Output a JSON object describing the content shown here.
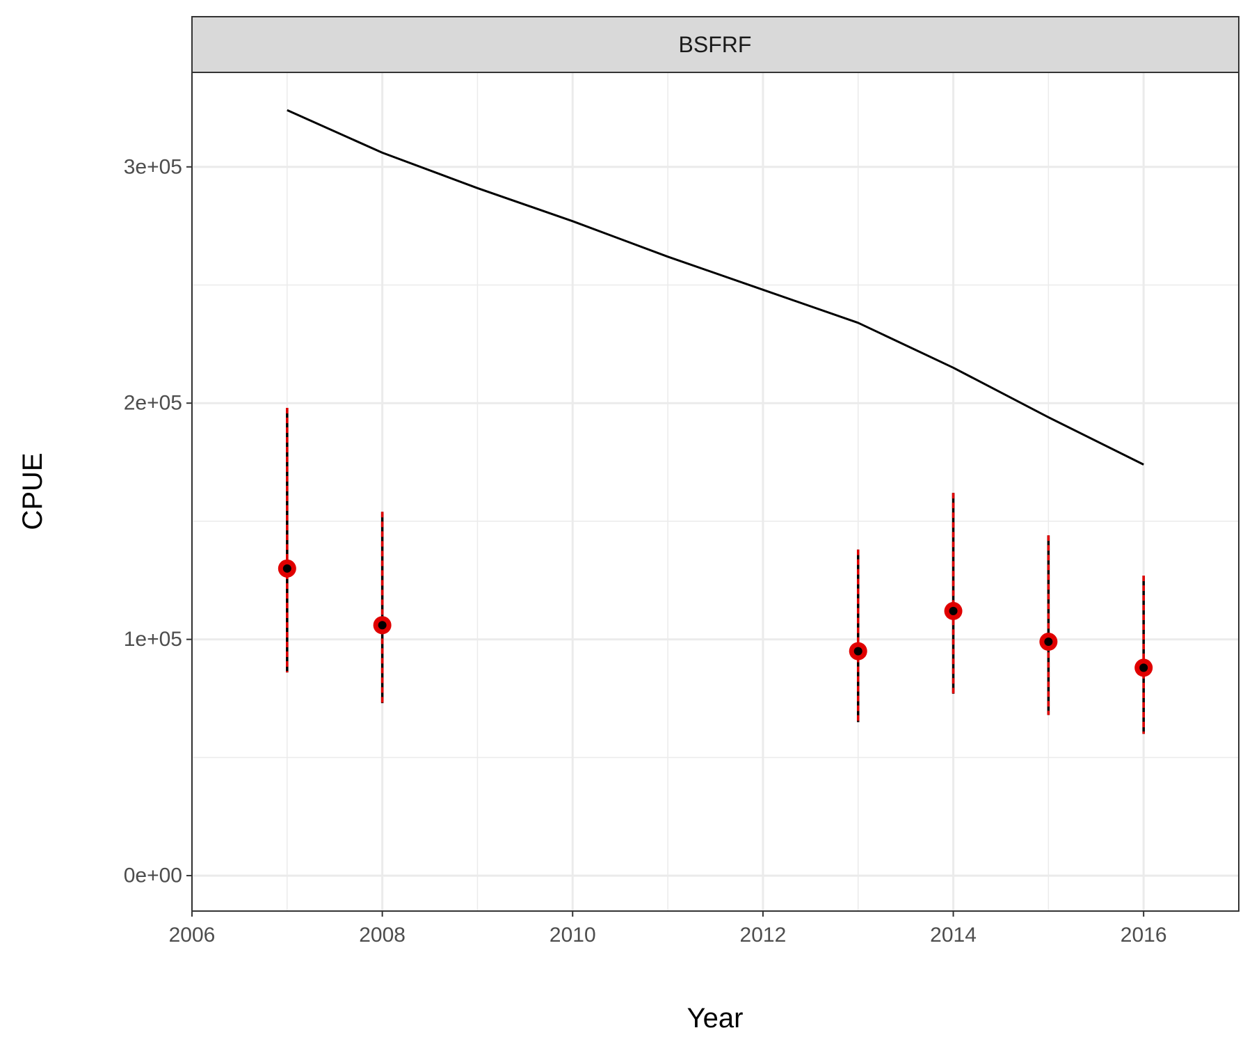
{
  "chart_data": {
    "type": "line",
    "panel": "BSFRF",
    "xlabel": "Year",
    "ylabel": "CPUE",
    "xlim": [
      2006,
      2017
    ],
    "ylim": [
      -15000,
      340000
    ],
    "x_ticks": [
      2006,
      2008,
      2010,
      2012,
      2014,
      2016
    ],
    "x_tick_labels": [
      "2006",
      "2008",
      "2010",
      "2012",
      "2014",
      "2016"
    ],
    "y_ticks": [
      0,
      100000,
      200000,
      300000
    ],
    "y_tick_labels": [
      "0e+00",
      "1e+05",
      "2e+05",
      "3e+05"
    ],
    "x_minor_ticks": [
      2007,
      2009,
      2011,
      2013,
      2015
    ],
    "y_minor_ticks": [
      50000,
      150000,
      250000
    ],
    "grid": true,
    "series": [
      {
        "type": "line",
        "color": "#000000",
        "x": [
          2007,
          2008,
          2009,
          2010,
          2011,
          2012,
          2013,
          2014,
          2015,
          2016
        ],
        "y": [
          324000,
          306000,
          291000,
          277000,
          262000,
          248000,
          234000,
          215000,
          194000,
          174000
        ]
      },
      {
        "type": "points_with_error_bars",
        "point_color": "#e00000",
        "center_color": "#000000",
        "bar_color": "#000000",
        "bar_dash_color": "#e00000",
        "x": [
          2007,
          2008,
          2013,
          2014,
          2015,
          2016
        ],
        "y": [
          130000,
          106000,
          95000,
          112000,
          99000,
          88000
        ],
        "lower": [
          86000,
          73000,
          65000,
          77000,
          68000,
          60000
        ],
        "upper": [
          198000,
          154000,
          138000,
          162000,
          144000,
          127000
        ]
      }
    ]
  }
}
